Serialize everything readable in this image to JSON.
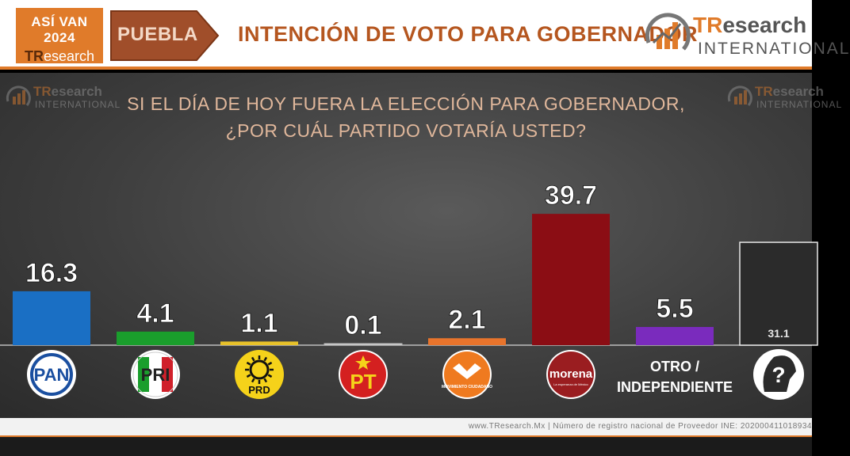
{
  "header": {
    "badge_title": "ASÍ VAN 2024",
    "badge_brand_a": "TR",
    "badge_brand_b": "esearch",
    "state": "PUEBLA",
    "title": "INTENCIÓN DE VOTO PARA GOBERNADOR",
    "logo_brand_a": "TR",
    "logo_brand_b": "esearch",
    "logo_intl": "INTERNATIONAL"
  },
  "watermark": {
    "brand_a": "TR",
    "brand_b": "esearch",
    "intl": "INTERNATIONAL"
  },
  "question": {
    "line1": "SI EL DÍA DE HOY FUERA LA ELECCIÓN PARA GOBERNADOR,",
    "line2": "¿POR CUÁL PARTIDO VOTARÍA USTED?"
  },
  "chart_data": {
    "type": "bar",
    "categories": [
      "PAN",
      "PRI",
      "PRD",
      "PT",
      "MC",
      "MORENA",
      "OTRO / INDEPENDIENTE",
      "NO SABE"
    ],
    "values": [
      16.3,
      4.1,
      1.1,
      0.1,
      2.1,
      39.7,
      5.5,
      31.1
    ],
    "value_labels": [
      "16.3",
      "4.1",
      "1.1",
      "0.1",
      "2.1",
      "39.7",
      "5.5",
      "31.1"
    ],
    "colors": [
      "#1a6fc4",
      "#1a9e2c",
      "#e8c22a",
      "#d0d0d0",
      "#e8742c",
      "#8b0d14",
      "#7a2bbd",
      "#2b2b2b"
    ],
    "logos": [
      {
        "kind": "pan",
        "text": "PAN"
      },
      {
        "kind": "pri",
        "text": "PRI"
      },
      {
        "kind": "prd",
        "text": "PRD"
      },
      {
        "kind": "pt",
        "text": "PT"
      },
      {
        "kind": "mc",
        "text": "MOVIMIENTO CIUDADANO"
      },
      {
        "kind": "morena",
        "text": "morena",
        "sub": "La esperanza de México"
      },
      {
        "kind": "text",
        "line1": "OTRO /",
        "line2": "INDEPENDIENTE"
      },
      {
        "kind": "unknown",
        "text": "?"
      }
    ],
    "ylim": [
      0,
      45
    ]
  },
  "footer": {
    "text": "www.TResearch.Mx | Número de registro nacional de Proveedor INE: 202000411018934"
  }
}
